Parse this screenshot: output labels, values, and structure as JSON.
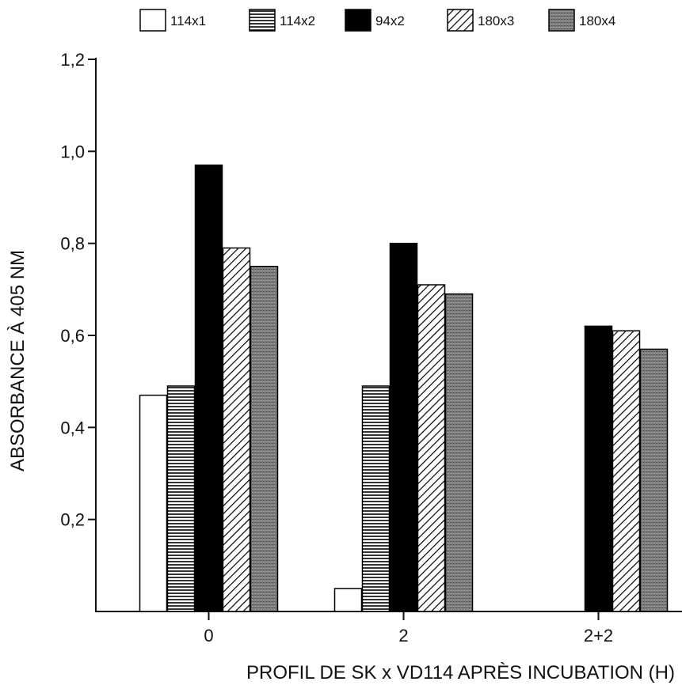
{
  "chart_data": {
    "type": "bar",
    "categories": [
      "0",
      "2",
      "2+2"
    ],
    "series": [
      {
        "name": "114x1",
        "values": [
          0.47,
          0.05,
          0.0
        ],
        "fill": "#ffffff",
        "pattern": "none"
      },
      {
        "name": "114x2",
        "values": [
          0.49,
          0.49,
          0.0
        ],
        "fill": "#ffffff",
        "pattern": "horizontal-lines"
      },
      {
        "name": "94x2",
        "values": [
          0.97,
          0.8,
          0.62
        ],
        "fill": "#000000",
        "pattern": "solid"
      },
      {
        "name": "180x3",
        "values": [
          0.79,
          0.71,
          0.61
        ],
        "fill": "#ffffff",
        "pattern": "diagonal-lines"
      },
      {
        "name": "180x4",
        "values": [
          0.75,
          0.69,
          0.57
        ],
        "fill": "#777777",
        "pattern": "stipple"
      }
    ],
    "xlabel": "PROFIL DE SK x VD114 APRÈS INCUBATION (H)",
    "ylabel": "ABSORBANCE À 405 NM",
    "ylim": [
      0,
      1.2
    ],
    "yticks": [
      0.2,
      0.4,
      0.6,
      0.8,
      1.0,
      1.2
    ],
    "ytick_labels": [
      "0,2",
      "0,4",
      "0,6",
      "0,8",
      "1,0",
      "1,2"
    ],
    "legend_position": "top",
    "grid": false
  }
}
